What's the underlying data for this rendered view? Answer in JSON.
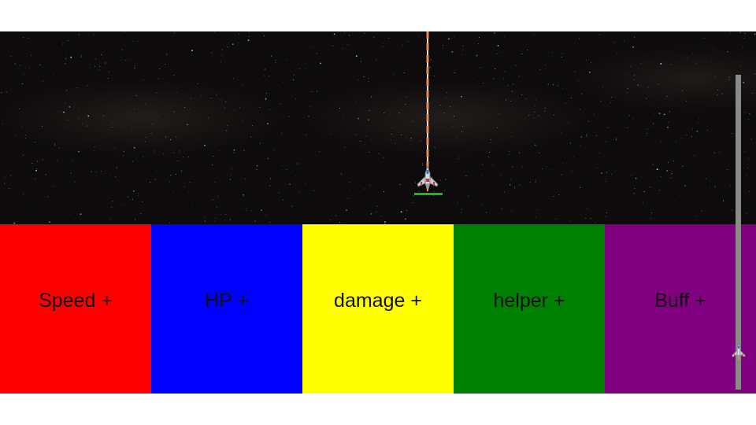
{
  "upgrades": [
    {
      "label": "Speed +",
      "color": "#ff0000"
    },
    {
      "label": "HP +",
      "color": "#0000ff"
    },
    {
      "label": "damage +",
      "color": "#ffff00"
    },
    {
      "label": "helper +",
      "color": "#008000"
    },
    {
      "label": "Buff +",
      "color": "#800080"
    }
  ],
  "colors": {
    "laser_core": "#e8e0d8",
    "laser_dash": "#f08a50",
    "player_hp": "#1db81d",
    "progress_track": "#8a8a8a"
  },
  "icons": {
    "player": "player-spaceship-icon",
    "progress_marker": "progress-spaceship-icon"
  },
  "player_hp_fraction": 1.0,
  "level_progress_fraction": 0.97
}
